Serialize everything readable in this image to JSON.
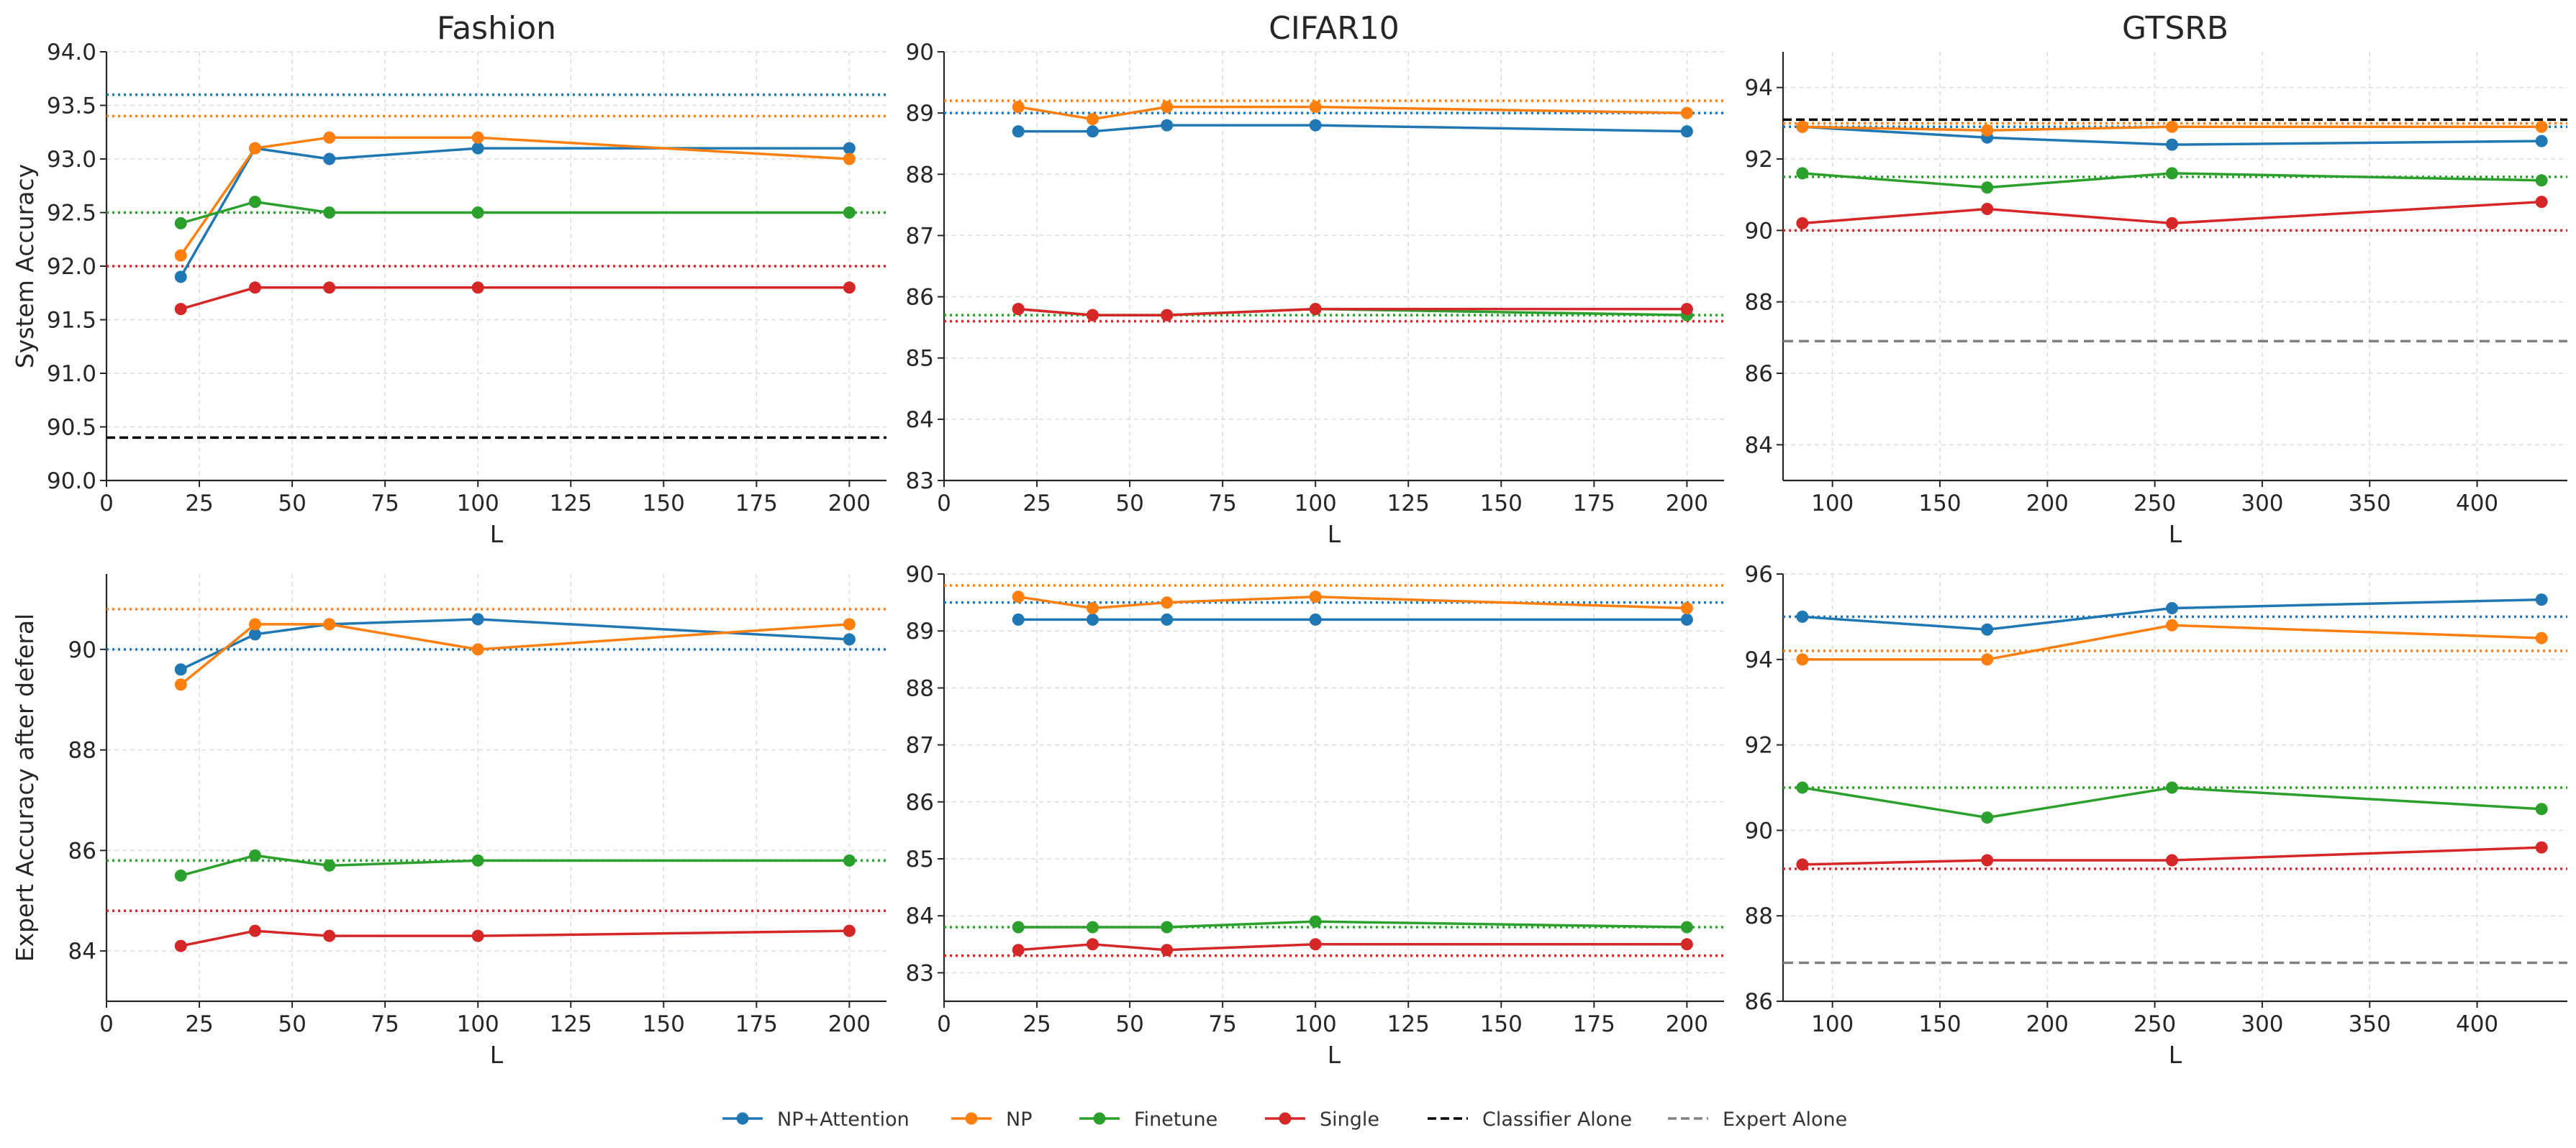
{
  "colors": {
    "NP+Attention": "#1f77b4",
    "NP": "#ff7f0e",
    "Finetune": "#2ca02c",
    "Single": "#d62728",
    "Classifier Alone": "#000000",
    "Expert Alone": "#808080"
  },
  "legend": [
    "NP+Attention",
    "NP",
    "Finetune",
    "Single",
    "Classifier Alone",
    "Expert Alone"
  ],
  "chart_data": [
    {
      "type": "line",
      "title": "Fashion",
      "xlabel": "L",
      "ylabel": "System Accuracy",
      "xlim": [
        0,
        210
      ],
      "ylim": [
        90.0,
        94.0
      ],
      "xticks": [
        "0",
        "25",
        "50",
        "75",
        "100",
        "125",
        "150",
        "175",
        "200"
      ],
      "yticks": [
        "90.0",
        "90.5",
        "91.0",
        "91.5",
        "92.0",
        "92.5",
        "93.0",
        "93.5",
        "94.0"
      ],
      "x": [
        20,
        40,
        60,
        100,
        200
      ],
      "series": [
        {
          "name": "NP+Attention",
          "values": [
            91.9,
            93.1,
            93.0,
            93.1,
            93.1
          ],
          "baseline": 93.6
        },
        {
          "name": "NP",
          "values": [
            92.1,
            93.1,
            93.2,
            93.2,
            93.0
          ],
          "baseline": 93.4
        },
        {
          "name": "Finetune",
          "values": [
            92.4,
            92.6,
            92.5,
            92.5,
            92.5
          ],
          "baseline": 92.5
        },
        {
          "name": "Single",
          "values": [
            91.6,
            91.8,
            91.8,
            91.8,
            91.8
          ],
          "baseline": 92.0
        }
      ],
      "reference_lines": [
        {
          "name": "Classifier Alone",
          "value": 90.4
        }
      ]
    },
    {
      "type": "line",
      "title": "CIFAR10",
      "xlabel": "L",
      "ylabel": "",
      "xlim": [
        0,
        210
      ],
      "ylim": [
        83,
        90
      ],
      "xticks": [
        "0",
        "25",
        "50",
        "75",
        "100",
        "125",
        "150",
        "175",
        "200"
      ],
      "yticks": [
        "83",
        "84",
        "85",
        "86",
        "87",
        "88",
        "89",
        "90"
      ],
      "x": [
        20,
        40,
        60,
        100,
        200
      ],
      "series": [
        {
          "name": "NP+Attention",
          "values": [
            88.7,
            88.7,
            88.8,
            88.8,
            88.7
          ],
          "baseline": 89.0
        },
        {
          "name": "NP",
          "values": [
            89.1,
            88.9,
            89.1,
            89.1,
            89.0
          ],
          "baseline": 89.2
        },
        {
          "name": "Finetune",
          "values": [
            85.8,
            85.7,
            85.7,
            85.8,
            85.7
          ],
          "baseline": 85.7
        },
        {
          "name": "Single",
          "values": [
            85.8,
            85.7,
            85.7,
            85.8,
            85.8
          ],
          "baseline": 85.6
        }
      ],
      "reference_lines": []
    },
    {
      "type": "line",
      "title": "GTSRB",
      "xlabel": "L",
      "ylabel": "",
      "xlim": [
        77,
        442
      ],
      "ylim": [
        83,
        95
      ],
      "xticks": [
        "100",
        "150",
        "200",
        "250",
        "300",
        "350",
        "400"
      ],
      "yticks": [
        "84",
        "86",
        "88",
        "90",
        "92",
        "94"
      ],
      "x": [
        86,
        172,
        258,
        430
      ],
      "series": [
        {
          "name": "NP+Attention",
          "values": [
            92.9,
            92.6,
            92.4,
            92.5
          ],
          "baseline": 92.9
        },
        {
          "name": "NP",
          "values": [
            92.9,
            92.8,
            92.9,
            92.9
          ],
          "baseline": 93.0
        },
        {
          "name": "Finetune",
          "values": [
            91.6,
            91.2,
            91.6,
            91.4
          ],
          "baseline": 91.5
        },
        {
          "name": "Single",
          "values": [
            90.2,
            90.6,
            90.2,
            90.8
          ],
          "baseline": 90.0
        }
      ],
      "reference_lines": [
        {
          "name": "Expert Alone",
          "value": 86.9
        },
        {
          "name": "Classifier Alone",
          "value": 93.1
        }
      ]
    },
    {
      "type": "line",
      "title": "",
      "xlabel": "L",
      "ylabel": "Expert Accuracy after deferal",
      "xlim": [
        0,
        210
      ],
      "ylim": [
        83,
        91.5
      ],
      "xticks": [
        "0",
        "25",
        "50",
        "75",
        "100",
        "125",
        "150",
        "175",
        "200"
      ],
      "yticks": [
        "84",
        "86",
        "88",
        "90"
      ],
      "x": [
        20,
        40,
        60,
        100,
        200
      ],
      "series": [
        {
          "name": "NP+Attention",
          "values": [
            89.6,
            90.3,
            90.5,
            90.6,
            90.2
          ],
          "baseline": 90.0
        },
        {
          "name": "NP",
          "values": [
            89.3,
            90.5,
            90.5,
            90.0,
            90.5
          ],
          "baseline": 90.8
        },
        {
          "name": "Finetune",
          "values": [
            85.5,
            85.9,
            85.7,
            85.8,
            85.8
          ],
          "baseline": 85.8
        },
        {
          "name": "Single",
          "values": [
            84.1,
            84.4,
            84.3,
            84.3,
            84.4
          ],
          "baseline": 84.8
        }
      ],
      "reference_lines": []
    },
    {
      "type": "line",
      "title": "",
      "xlabel": "L",
      "ylabel": "",
      "xlim": [
        0,
        210
      ],
      "ylim": [
        82.5,
        90
      ],
      "xticks": [
        "0",
        "25",
        "50",
        "75",
        "100",
        "125",
        "150",
        "175",
        "200"
      ],
      "yticks": [
        "83",
        "84",
        "85",
        "86",
        "87",
        "88",
        "89",
        "90"
      ],
      "x": [
        20,
        40,
        60,
        100,
        200
      ],
      "series": [
        {
          "name": "NP+Attention",
          "values": [
            89.2,
            89.2,
            89.2,
            89.2,
            89.2
          ],
          "baseline": 89.5
        },
        {
          "name": "NP",
          "values": [
            89.6,
            89.4,
            89.5,
            89.6,
            89.4
          ],
          "baseline": 89.8
        },
        {
          "name": "Finetune",
          "values": [
            83.8,
            83.8,
            83.8,
            83.9,
            83.8
          ],
          "baseline": 83.8
        },
        {
          "name": "Single",
          "values": [
            83.4,
            83.5,
            83.4,
            83.5,
            83.5
          ],
          "baseline": 83.3
        }
      ],
      "reference_lines": []
    },
    {
      "type": "line",
      "title": "",
      "xlabel": "L",
      "ylabel": "",
      "xlim": [
        77,
        442
      ],
      "ylim": [
        86,
        96
      ],
      "xticks": [
        "100",
        "150",
        "200",
        "250",
        "300",
        "350",
        "400"
      ],
      "yticks": [
        "86",
        "88",
        "90",
        "92",
        "94",
        "96"
      ],
      "x": [
        86,
        172,
        258,
        430
      ],
      "series": [
        {
          "name": "NP+Attention",
          "values": [
            95.0,
            94.7,
            95.2,
            95.4
          ],
          "baseline": 95.0
        },
        {
          "name": "NP",
          "values": [
            94.0,
            94.0,
            94.8,
            94.5
          ],
          "baseline": 94.2
        },
        {
          "name": "Finetune",
          "values": [
            91.0,
            90.3,
            91.0,
            90.5
          ],
          "baseline": 91.0
        },
        {
          "name": "Single",
          "values": [
            89.2,
            89.3,
            89.3,
            89.6
          ],
          "baseline": 89.1
        }
      ],
      "reference_lines": [
        {
          "name": "Expert Alone",
          "value": 86.9
        }
      ]
    }
  ]
}
